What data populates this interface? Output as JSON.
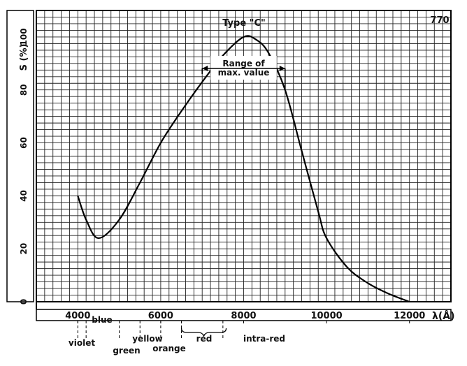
{
  "chart_data": {
    "type": "line",
    "title": "Type \"C\"",
    "figure_number": "770",
    "ylabel": "S (%)",
    "xlabel": "λ(Å)",
    "xlim": [
      3000,
      13000
    ],
    "ylim": [
      0,
      110
    ],
    "x_ticks": [
      4000,
      6000,
      8000,
      10000,
      12000
    ],
    "x_tick_labels": [
      "4000",
      "6000",
      "8000",
      "10000",
      "12000"
    ],
    "y_ticks": [
      0,
      20,
      40,
      60,
      80,
      100
    ],
    "y_tick_labels": [
      "0",
      "20",
      "40",
      "60",
      "80",
      "100"
    ],
    "grid": true,
    "series": [
      {
        "x": [
          4000,
          4200,
          4500,
          5000,
          5500,
          6000,
          6500,
          7000,
          7500,
          8000,
          8300,
          8600,
          9000,
          9400,
          9800,
          10000,
          10500,
          11000,
          11500,
          12000
        ],
        "y": [
          40,
          31,
          24,
          31,
          45,
          60,
          72,
          83,
          93,
          100,
          99,
          94,
          80,
          57,
          34,
          24,
          13,
          7,
          3,
          0
        ]
      }
    ],
    "annotations": {
      "range_label_line1": "Range of",
      "range_label_line2": "max. value",
      "range_from": 7000,
      "range_to": 9000
    },
    "spectrum_bands": [
      {
        "label": "violet",
        "from": 4000,
        "to": 4200
      },
      {
        "label": "blue",
        "from": 4200,
        "to": 5000
      },
      {
        "label": "green",
        "from": 5000,
        "to": 5500
      },
      {
        "label": "yellow",
        "from": 5500,
        "to": 6000
      },
      {
        "label": "orange",
        "from": 6000,
        "to": 6500
      },
      {
        "label": "red",
        "from": 6500,
        "to": 7500
      },
      {
        "label": "intra-red",
        "from": 7500,
        "to": 10000
      }
    ]
  }
}
